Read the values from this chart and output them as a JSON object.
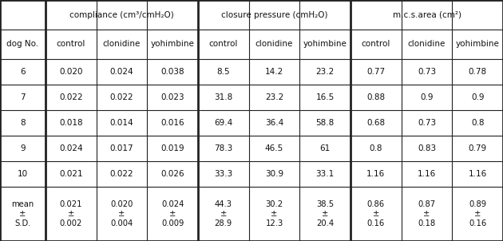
{
  "col_groups": [
    {
      "label": "compliance (cm³/cmH₂O)",
      "cols": [
        "control",
        "clonidine",
        "yohimbine"
      ]
    },
    {
      "label": "closure pressure (cmH₂O)",
      "cols": [
        "control",
        "clonidine",
        "yohimbine"
      ]
    },
    {
      "label": "m.c.s.area (cm²)",
      "cols": [
        "control",
        "clonidine",
        "yohimbine"
      ]
    }
  ],
  "col0_label": "dog No.",
  "rows": [
    [
      "6",
      "0.020",
      "0.024",
      "0.038",
      "8.5",
      "14.2",
      "23.2",
      "0.77",
      "0.73",
      "0.78"
    ],
    [
      "7",
      "0.022",
      "0.022",
      "0.023",
      "31.8",
      "23.2",
      "16.5",
      "0.88",
      "0.9",
      "0.9"
    ],
    [
      "8",
      "0.018",
      "0.014",
      "0.016",
      "69.4",
      "36.4",
      "58.8",
      "0.68",
      "0.73",
      "0.8"
    ],
    [
      "9",
      "0.024",
      "0.017",
      "0.019",
      "78.3",
      "46.5",
      "61",
      "0.8",
      "0.83",
      "0.79"
    ],
    [
      "10",
      "0.021",
      "0.022",
      "0.026",
      "33.3",
      "30.9",
      "33.1",
      "1.16",
      "1.16",
      "1.16"
    ]
  ],
  "mean_row": [
    "mean\n±\nS.D.",
    "0.021\n±\n0.002",
    "0.020\n±\n0.004",
    "0.024\n±\n0.009",
    "44.3\n±\n28.9",
    "30.2\n±\n12.3",
    "38.5\n±\n20.4",
    "0.86\n±\n0.16",
    "0.87\n±\n0.18",
    "0.89\n±\n0.16"
  ],
  "border_color": "#222222",
  "text_color": "#111111",
  "n_cols": 10
}
